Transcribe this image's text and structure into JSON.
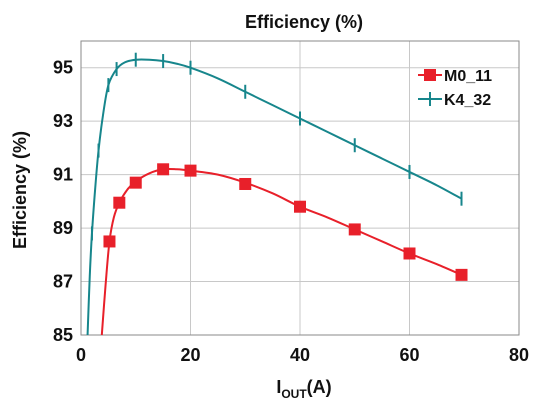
{
  "chart_data": {
    "type": "line",
    "title": "Efficiency (%)",
    "xlabel": {
      "main": "I",
      "sub": "OUT",
      "suffix": "(A)"
    },
    "ylabel": "Efficiency (%)",
    "xlim": [
      0,
      80
    ],
    "ylim": [
      85,
      96
    ],
    "xticks": [
      0,
      20,
      40,
      60,
      80
    ],
    "yticks": [
      85,
      87,
      89,
      91,
      93,
      95
    ],
    "grid": true,
    "legend_position": "top-right",
    "series": [
      {
        "name": "M0_11",
        "color": "#e8202a",
        "marker": "square",
        "curve_x": [
          3.8,
          4.5,
          5.2,
          6.0,
          7.0,
          8.5,
          10.0,
          12.5,
          15.0,
          17.5,
          20.0,
          25.0,
          30.0,
          35.0,
          40.0,
          45.0,
          50.0,
          55.0,
          60.0,
          65.0,
          69.5
        ],
        "curve_y": [
          85.0,
          86.9,
          88.5,
          89.4,
          89.95,
          90.45,
          90.75,
          91.05,
          91.2,
          91.2,
          91.15,
          91.0,
          90.7,
          90.3,
          89.8,
          89.4,
          88.95,
          88.5,
          88.05,
          87.65,
          87.25
        ],
        "marker_x": [
          5.2,
          7.0,
          10.0,
          15.0,
          20.0,
          30.0,
          40.0,
          50.0,
          60.0,
          69.5
        ],
        "marker_y": [
          88.5,
          89.95,
          90.7,
          91.2,
          91.15,
          90.65,
          89.8,
          88.95,
          88.05,
          87.25
        ]
      },
      {
        "name": "K4_32",
        "color": "#17868c",
        "marker": "plus",
        "curve_x": [
          1.2,
          1.6,
          2.0,
          2.6,
          3.2,
          4.0,
          5.0,
          6.5,
          8.0,
          10.0,
          12.5,
          15.0,
          17.5,
          20.0,
          25.0,
          30.0,
          35.0,
          40.0,
          45.0,
          50.0,
          55.0,
          60.0,
          65.0,
          69.5
        ],
        "curve_y": [
          85.0,
          87.2,
          88.8,
          90.5,
          91.9,
          93.2,
          94.35,
          94.95,
          95.2,
          95.3,
          95.3,
          95.25,
          95.15,
          95.0,
          94.6,
          94.1,
          93.6,
          93.1,
          92.6,
          92.1,
          91.6,
          91.1,
          90.6,
          90.1
        ],
        "marker_x": [
          2.0,
          3.2,
          5.0,
          6.5,
          10.0,
          15.0,
          20.0,
          30.0,
          40.0,
          50.0,
          60.0,
          69.5
        ],
        "marker_y": [
          88.8,
          91.9,
          94.35,
          94.95,
          95.3,
          95.25,
          95.0,
          94.1,
          93.1,
          92.1,
          91.1,
          90.1
        ]
      }
    ]
  }
}
